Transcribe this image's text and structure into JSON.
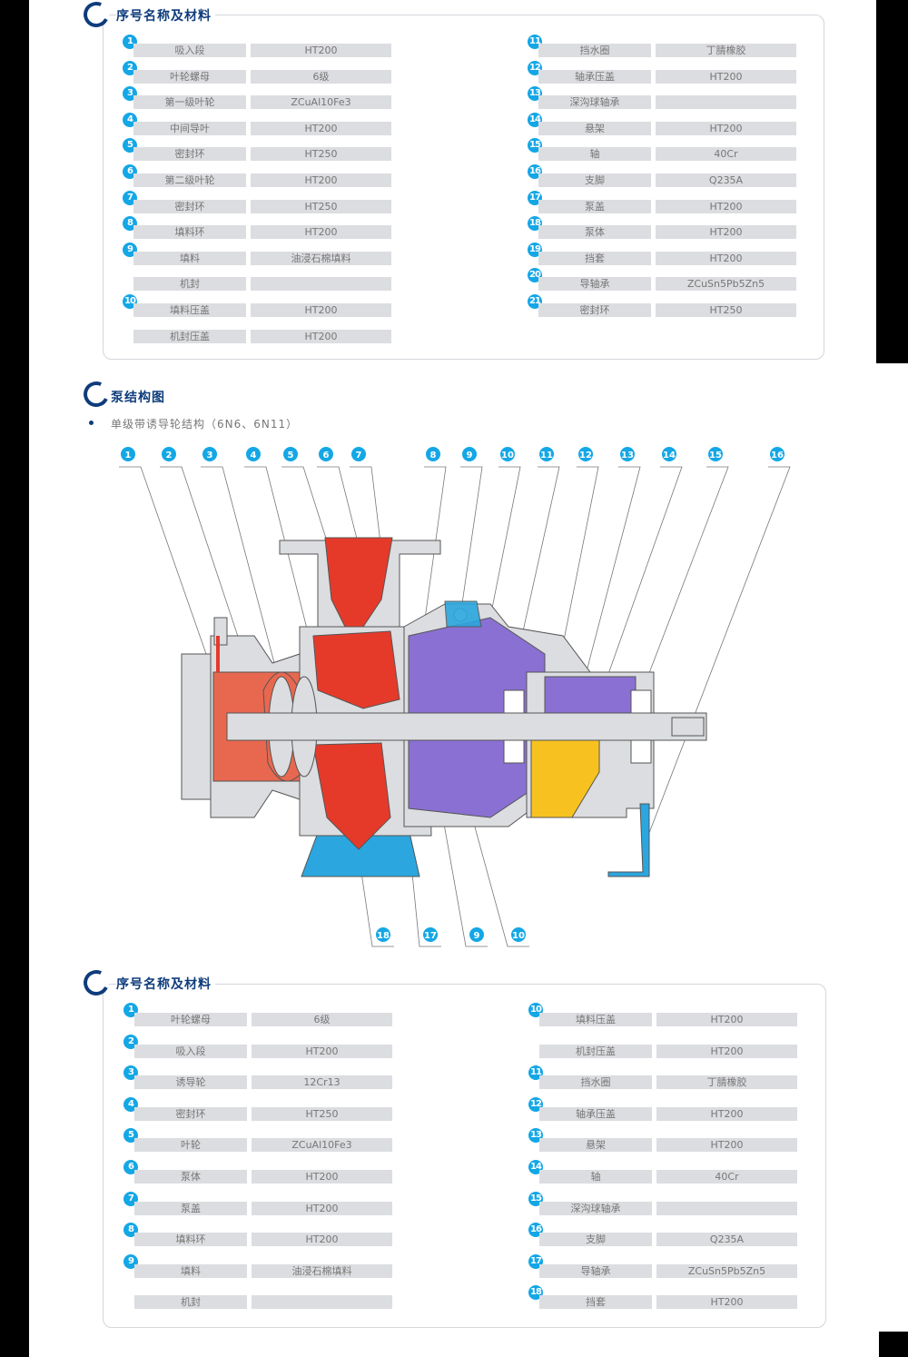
{
  "colors": {
    "accent": "#14a7e6",
    "title": "#0e3c7c",
    "cell": "#dcdde0",
    "impeller": "#e53a2a",
    "casing": "#e8684f",
    "frame": "#8a70d2",
    "base": "#2ba6de",
    "bearing_cover": "#f7c21f"
  },
  "section1": {
    "title": "序号名称及材料",
    "left": [
      {
        "no": "1",
        "name": "吸入段",
        "material": "HT200"
      },
      {
        "no": "2",
        "name": "叶轮螺母",
        "material": "6级"
      },
      {
        "no": "3",
        "name": "第一级叶轮",
        "material": "ZCuAl10Fe3"
      },
      {
        "no": "4",
        "name": "中间导叶",
        "material": "HT200"
      },
      {
        "no": "5",
        "name": "密封环",
        "material": "HT250"
      },
      {
        "no": "6",
        "name": "第二级叶轮",
        "material": "HT200"
      },
      {
        "no": "7",
        "name": "密封环",
        "material": "HT250"
      },
      {
        "no": "8",
        "name": "填料环",
        "material": "HT200"
      },
      {
        "no": "9",
        "name": "填料",
        "material": "油浸石棉填料"
      },
      {
        "no": "",
        "name": "机封",
        "material": ""
      },
      {
        "no": "10",
        "name": "填料压盖",
        "material": "HT200"
      },
      {
        "no": "",
        "name": "机封压盖",
        "material": "HT200"
      }
    ],
    "right": [
      {
        "no": "11",
        "name": "挡水圈",
        "material": "丁腈橡胶"
      },
      {
        "no": "12",
        "name": "轴承压盖",
        "material": "HT200"
      },
      {
        "no": "13",
        "name": "深沟球轴承",
        "material": ""
      },
      {
        "no": "14",
        "name": "悬架",
        "material": "HT200"
      },
      {
        "no": "15",
        "name": "轴",
        "material": "40Cr"
      },
      {
        "no": "16",
        "name": "支脚",
        "material": "Q235A"
      },
      {
        "no": "17",
        "name": "泵盖",
        "material": "HT200"
      },
      {
        "no": "18",
        "name": "泵体",
        "material": "HT200"
      },
      {
        "no": "19",
        "name": "挡套",
        "material": "HT200"
      },
      {
        "no": "20",
        "name": "导轴承",
        "material": "ZCuSn5Pb5Zn5"
      },
      {
        "no": "21",
        "name": "密封环",
        "material": "HT250"
      }
    ]
  },
  "section2": {
    "title": "泵结构图",
    "subtitle": "单级带诱导轮结构（6N6、6N11）",
    "top_labels": [
      "1",
      "2",
      "3",
      "4",
      "5",
      "6",
      "7",
      "8",
      "9",
      "10",
      "11",
      "12",
      "13",
      "14",
      "15",
      "16"
    ],
    "bottom_labels": [
      "18",
      "17",
      "9",
      "10"
    ]
  },
  "section3": {
    "title": "序号名称及材料",
    "left": [
      {
        "no": "1",
        "name": "叶轮螺母",
        "material": "6级"
      },
      {
        "no": "2",
        "name": "吸入段",
        "material": "HT200"
      },
      {
        "no": "3",
        "name": "诱导轮",
        "material": "12Cr13"
      },
      {
        "no": "4",
        "name": "密封环",
        "material": "HT250"
      },
      {
        "no": "5",
        "name": "叶轮",
        "material": "ZCuAl10Fe3"
      },
      {
        "no": "6",
        "name": "泵体",
        "material": "HT200"
      },
      {
        "no": "7",
        "name": "泵盖",
        "material": "HT200"
      },
      {
        "no": "8",
        "name": "填料环",
        "material": "HT200"
      },
      {
        "no": "9",
        "name": "填料",
        "material": "油浸石棉填料"
      },
      {
        "no": "",
        "name": "机封",
        "material": ""
      }
    ],
    "right": [
      {
        "no": "10",
        "name": "填料压盖",
        "material": "HT200"
      },
      {
        "no": "",
        "name": "机封压盖",
        "material": "HT200"
      },
      {
        "no": "11",
        "name": "挡水圈",
        "material": "丁腈橡胶"
      },
      {
        "no": "12",
        "name": "轴承压盖",
        "material": "HT200"
      },
      {
        "no": "13",
        "name": "悬架",
        "material": "HT200"
      },
      {
        "no": "14",
        "name": "轴",
        "material": "40Cr"
      },
      {
        "no": "15",
        "name": "深沟球轴承",
        "material": ""
      },
      {
        "no": "16",
        "name": "支脚",
        "material": "Q235A"
      },
      {
        "no": "17",
        "name": "导轴承",
        "material": "ZCuSn5Pb5Zn5"
      },
      {
        "no": "18",
        "name": "挡套",
        "material": "HT200"
      }
    ]
  }
}
